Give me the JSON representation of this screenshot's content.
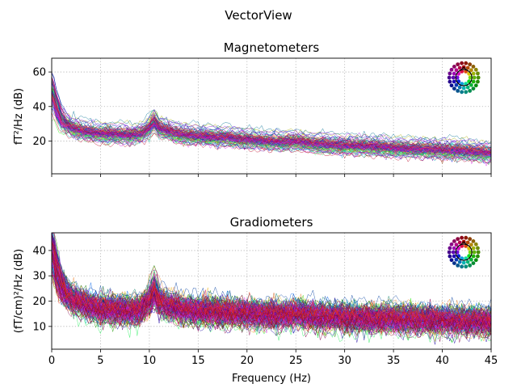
{
  "chart_data": {
    "suptitle": "VectorView",
    "xlabel": "Frequency (Hz)",
    "xlim": [
      0,
      45
    ],
    "xticks": [
      0,
      5,
      10,
      15,
      20,
      25,
      30,
      35,
      40,
      45
    ],
    "grid": true,
    "panels": [
      {
        "type": "line",
        "title": "Magnetometers",
        "ylabel": "fT²/Hz (dB)",
        "ylim": [
          1,
          68
        ],
        "yticks": [
          20,
          40,
          60
        ],
        "show_xticklabels": false,
        "sensor_legend": "top-right",
        "channel_count": 102,
        "representative_series": {
          "x": [
            0.1,
            0.5,
            1,
            1.5,
            2,
            3,
            4,
            5,
            6,
            7,
            8,
            9,
            10,
            10.5,
            11,
            12,
            13,
            15,
            18,
            20,
            22,
            24,
            25,
            27,
            30,
            33,
            35,
            38,
            40,
            42,
            44,
            45
          ],
          "values": [
            48,
            40,
            33,
            30,
            28,
            26,
            25,
            24.5,
            24,
            24,
            23.5,
            24,
            27,
            30,
            27,
            26,
            24,
            23,
            22,
            21,
            20,
            19.5,
            20,
            18.5,
            17.5,
            17,
            16,
            15.5,
            15,
            14.5,
            13.5,
            13
          ]
        }
      },
      {
        "type": "line",
        "title": "Gradiometers",
        "ylabel": "(fT/cm)²/Hz (dB)",
        "ylim": [
          1,
          47
        ],
        "yticks": [
          10,
          20,
          30,
          40
        ],
        "show_xticklabels": true,
        "sensor_legend": "top-right",
        "channel_count": 204,
        "representative_series": {
          "x": [
            0.1,
            0.5,
            1,
            1.5,
            2,
            3,
            4,
            5,
            6,
            7,
            8,
            9,
            10,
            10.5,
            11,
            12,
            13,
            15,
            18,
            20,
            22,
            24,
            25,
            27,
            30,
            33,
            35,
            38,
            40,
            42,
            44,
            45
          ],
          "values": [
            40,
            32,
            26,
            23,
            21,
            19,
            18,
            17,
            16.5,
            16.5,
            16,
            16.5,
            19,
            22,
            19,
            18,
            17,
            16,
            15.5,
            15,
            14.5,
            14.5,
            15,
            14,
            13.5,
            13,
            13,
            12.5,
            12.5,
            12,
            12,
            11.5
          ]
        }
      }
    ]
  }
}
